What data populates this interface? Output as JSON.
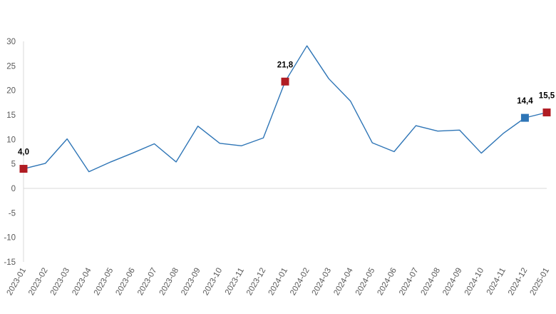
{
  "chart_data": {
    "type": "line",
    "title": "",
    "xlabel": "",
    "ylabel": "",
    "ylim": [
      -15,
      30
    ],
    "yticks": [
      30,
      25,
      20,
      15,
      10,
      5,
      0,
      -5,
      -10,
      -15
    ],
    "grid": false,
    "categories": [
      "2023-01",
      "2023-02",
      "2023-03",
      "2023-04",
      "2023-05",
      "2023-06",
      "2023-07",
      "2023-08",
      "2023-09",
      "2023-10",
      "2023-11",
      "2023-12",
      "2024-01",
      "2024-02",
      "2024-03",
      "2024-04",
      "2024-05",
      "2024-06",
      "2024-07",
      "2024-08",
      "2024-09",
      "2024-10",
      "2024-11",
      "2024-12",
      "2025-01"
    ],
    "series": [
      {
        "values": [
          4.0,
          5.1,
          10.1,
          3.4,
          5.4,
          7.2,
          9.1,
          5.4,
          12.7,
          9.2,
          8.7,
          10.3,
          21.8,
          29.1,
          22.4,
          17.8,
          9.3,
          7.5,
          12.8,
          11.7,
          11.9,
          7.2,
          11.2,
          14.4,
          15.5
        ],
        "color": "#2e75b6"
      }
    ],
    "markers": [
      {
        "index": 0,
        "value": 4.0,
        "label": "4,0",
        "color": "#b01c23"
      },
      {
        "index": 12,
        "value": 21.8,
        "label": "21,8",
        "color": "#b01c23"
      },
      {
        "index": 23,
        "value": 14.4,
        "label": "14,4",
        "color": "#2e75b6"
      },
      {
        "index": 24,
        "value": 15.5,
        "label": "15,5",
        "color": "#b01c23"
      }
    ],
    "colors": {
      "axis": "#d9d9d9",
      "tick_text": "#595959",
      "label_text": "#000000"
    }
  }
}
